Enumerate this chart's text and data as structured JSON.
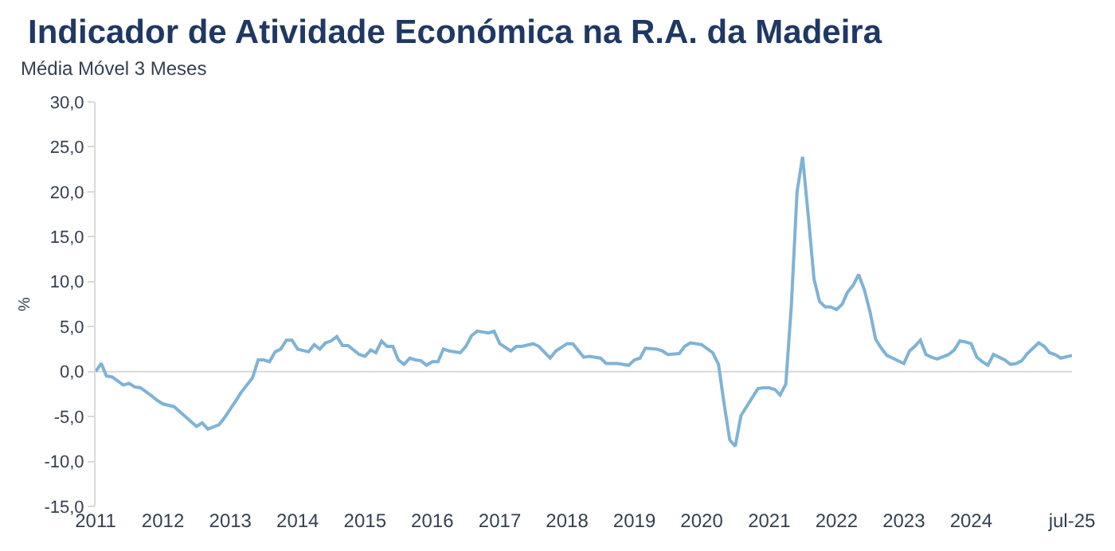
{
  "chart_data": {
    "type": "line",
    "title": "Indicador de Atividade Económica na R.A. da Madeira",
    "subtitle": "Média Móvel 3 Meses",
    "ylabel": "%",
    "x": [
      "2011-01",
      "2011-02",
      "2011-03",
      "2011-04",
      "2011-06",
      "2011-07",
      "2011-08",
      "2011-09",
      "2011-11",
      "2011-12",
      "2012-01",
      "2012-03",
      "2012-05",
      "2012-07",
      "2012-08",
      "2012-09",
      "2012-11",
      "2012-12",
      "2013-02",
      "2013-03",
      "2013-05",
      "2013-06",
      "2013-07",
      "2013-08",
      "2013-09",
      "2013-10",
      "2013-11",
      "2013-12",
      "2014-01",
      "2014-03",
      "2014-04",
      "2014-05",
      "2014-06",
      "2014-07",
      "2014-08",
      "2014-09",
      "2014-10",
      "2014-12",
      "2015-01",
      "2015-02",
      "2015-03",
      "2015-04",
      "2015-05",
      "2015-06",
      "2015-07",
      "2015-08",
      "2015-09",
      "2015-10",
      "2015-11",
      "2015-12",
      "2016-01",
      "2016-02",
      "2016-03",
      "2016-04",
      "2016-06",
      "2016-07",
      "2016-08",
      "2016-09",
      "2016-11",
      "2016-12",
      "2017-01",
      "2017-03",
      "2017-04",
      "2017-05",
      "2017-07",
      "2017-08",
      "2017-10",
      "2017-11",
      "2018-01",
      "2018-02",
      "2018-04",
      "2018-05",
      "2018-07",
      "2018-08",
      "2018-10",
      "2018-12",
      "2019-01",
      "2019-02",
      "2019-03",
      "2019-05",
      "2019-06",
      "2019-07",
      "2019-09",
      "2019-10",
      "2019-11",
      "2020-01",
      "2020-03",
      "2020-04",
      "2020-05",
      "2020-06",
      "2020-07",
      "2020-08",
      "2020-10",
      "2020-11",
      "2020-12",
      "2021-01",
      "2021-02",
      "2021-03",
      "2021-04",
      "2021-05",
      "2021-06",
      "2021-07",
      "2021-08",
      "2021-09",
      "2021-10",
      "2021-11",
      "2021-12",
      "2022-01",
      "2022-02",
      "2022-03",
      "2022-04",
      "2022-05",
      "2022-06",
      "2022-07",
      "2022-08",
      "2022-09",
      "2022-10",
      "2022-11",
      "2023-01",
      "2023-02",
      "2023-03",
      "2023-04",
      "2023-05",
      "2023-06",
      "2023-07",
      "2023-09",
      "2023-10",
      "2023-11",
      "2023-12",
      "2024-01",
      "2024-02",
      "2024-03",
      "2024-04",
      "2024-05",
      "2024-06",
      "2024-07",
      "2024-08",
      "2024-09",
      "2024-10",
      "2024-11",
      "2025-01",
      "2025-02",
      "2025-03",
      "2025-04",
      "2025-05",
      "2025-07"
    ],
    "series": [
      {
        "color": "#7fb3d5",
        "values": [
          0.0,
          0.9,
          -0.5,
          -0.6,
          -1.5,
          -1.3,
          -1.7,
          -1.8,
          -2.7,
          -3.2,
          -3.6,
          -3.9,
          -5.0,
          -6.1,
          -5.7,
          -6.4,
          -5.9,
          -5.1,
          -3.2,
          -2.3,
          -0.7,
          1.3,
          1.3,
          1.1,
          2.2,
          2.5,
          3.5,
          3.5,
          2.5,
          2.2,
          3.0,
          2.5,
          3.2,
          3.4,
          3.9,
          2.9,
          2.9,
          1.9,
          1.7,
          2.4,
          2.1,
          3.4,
          2.8,
          2.8,
          1.3,
          0.8,
          1.5,
          1.3,
          1.2,
          0.7,
          1.1,
          1.1,
          2.5,
          2.3,
          2.1,
          2.8,
          4.0,
          4.5,
          4.3,
          4.5,
          3.1,
          2.3,
          2.8,
          2.8,
          3.1,
          2.8,
          1.5,
          2.3,
          3.1,
          3.1,
          1.6,
          1.7,
          1.5,
          0.9,
          0.9,
          0.7,
          1.3,
          1.5,
          2.6,
          2.5,
          2.3,
          1.9,
          2.0,
          2.8,
          3.2,
          3.0,
          2.1,
          0.8,
          -3.5,
          -7.6,
          -8.3,
          -4.9,
          -2.9,
          -1.9,
          -1.8,
          -1.8,
          -2.0,
          -2.6,
          -1.4,
          7.3,
          20.0,
          23.9,
          17.3,
          10.3,
          7.8,
          7.2,
          7.2,
          6.9,
          7.5,
          8.8,
          9.6,
          10.8,
          9.1,
          6.7,
          3.6,
          2.6,
          1.8,
          1.5,
          0.9,
          2.3,
          2.8,
          3.5,
          1.9,
          1.6,
          1.4,
          1.9,
          2.4,
          3.4,
          3.3,
          3.1,
          1.6,
          1.1,
          0.7,
          1.9,
          1.6,
          1.3,
          0.8,
          0.9,
          1.2,
          2.0,
          3.2,
          2.8,
          2.1,
          1.9,
          1.5,
          1.8
        ]
      }
    ],
    "xlim": [
      "2011-01",
      "2025-07"
    ],
    "xticks": [
      {
        "value": "2011-01",
        "label": "2011"
      },
      {
        "value": "2012-01",
        "label": "2012"
      },
      {
        "value": "2013-01",
        "label": "2013"
      },
      {
        "value": "2014-01",
        "label": "2014"
      },
      {
        "value": "2015-01",
        "label": "2015"
      },
      {
        "value": "2016-01",
        "label": "2016"
      },
      {
        "value": "2017-01",
        "label": "2017"
      },
      {
        "value": "2018-01",
        "label": "2018"
      },
      {
        "value": "2019-01",
        "label": "2019"
      },
      {
        "value": "2020-01",
        "label": "2020"
      },
      {
        "value": "2021-01",
        "label": "2021"
      },
      {
        "value": "2022-01",
        "label": "2022"
      },
      {
        "value": "2023-01",
        "label": "2023"
      },
      {
        "value": "2024-01",
        "label": "2024"
      },
      {
        "value": "2025-07",
        "label": "jul-25"
      }
    ],
    "ylim": [
      -15,
      30
    ],
    "yticks": [
      {
        "value": -15,
        "label": "-15,0"
      },
      {
        "value": -10,
        "label": "-10,0"
      },
      {
        "value": -5,
        "label": "-5,0"
      },
      {
        "value": 0,
        "label": "0,0"
      },
      {
        "value": 5,
        "label": "5,0"
      },
      {
        "value": 10,
        "label": "10,0"
      },
      {
        "value": 15,
        "label": "15,0"
      },
      {
        "value": 20,
        "label": "20,0"
      },
      {
        "value": 25,
        "label": "25,0"
      },
      {
        "value": 30,
        "label": "30,0"
      }
    ],
    "ref_lines": [
      {
        "axis": "y",
        "value": 0,
        "color": "#d9d9d9"
      }
    ],
    "grid": false,
    "marker": "none",
    "line_style": "solid"
  }
}
